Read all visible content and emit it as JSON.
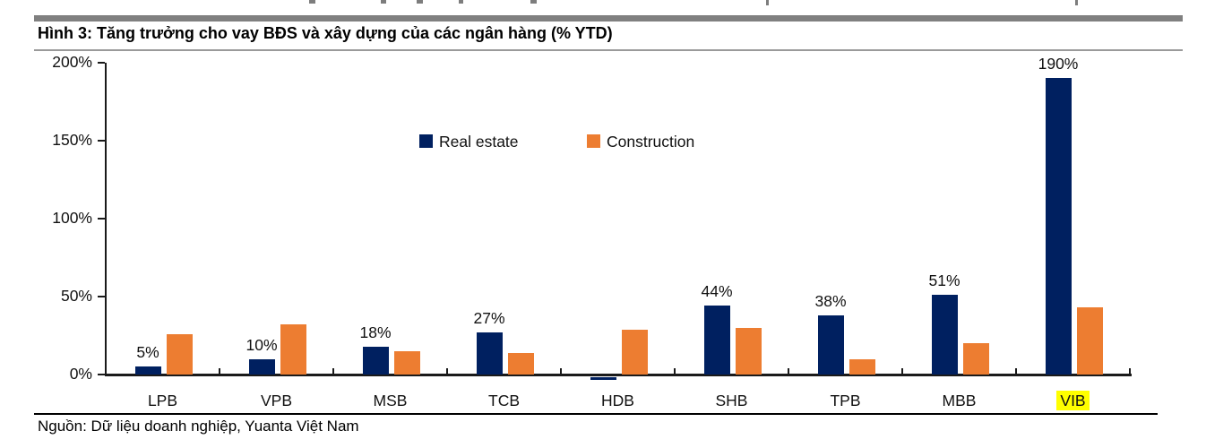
{
  "page": {
    "title": "Hình 3: Tăng trưởng cho vay BĐS và xây dựng của các ngân hàng (% YTD)",
    "source": "Nguồn: Dữ liệu doanh nghiệp, Yuanta Việt Nam"
  },
  "chart_data": {
    "type": "bar",
    "title": "Hình 3: Tăng trưởng cho vay BĐS và xây dựng của các ngân hàng (% YTD)",
    "categories": [
      "LPB",
      "VPB",
      "MSB",
      "TCB",
      "HDB",
      "SHB",
      "TPB",
      "MBB",
      "VIB"
    ],
    "series": [
      {
        "name": "Real estate",
        "color": "#002060",
        "values": [
          5,
          10,
          18,
          27,
          -1,
          44,
          38,
          51,
          190
        ]
      },
      {
        "name": "Construction",
        "color": "#ED7D31",
        "values": [
          26,
          32,
          15,
          14,
          29,
          30,
          10,
          20,
          43
        ]
      }
    ],
    "data_labels": {
      "series": "Real estate",
      "labels": [
        "5%",
        "10%",
        "18%",
        "27%",
        "",
        "44%",
        "38%",
        "51%",
        "190%"
      ]
    },
    "xlabel": "",
    "ylabel": "",
    "y_axis": {
      "tick_labels": [
        "0%",
        "50%",
        "100%",
        "150%",
        "200%"
      ],
      "tick_values": [
        0,
        50,
        100,
        150,
        200
      ],
      "min": -5,
      "max": 200
    },
    "grid": false,
    "legend": {
      "position": "top-center",
      "entries": [
        "Real estate",
        "Construction"
      ]
    },
    "highlight": {
      "category": "VIB",
      "color": "#FFFF00"
    }
  }
}
